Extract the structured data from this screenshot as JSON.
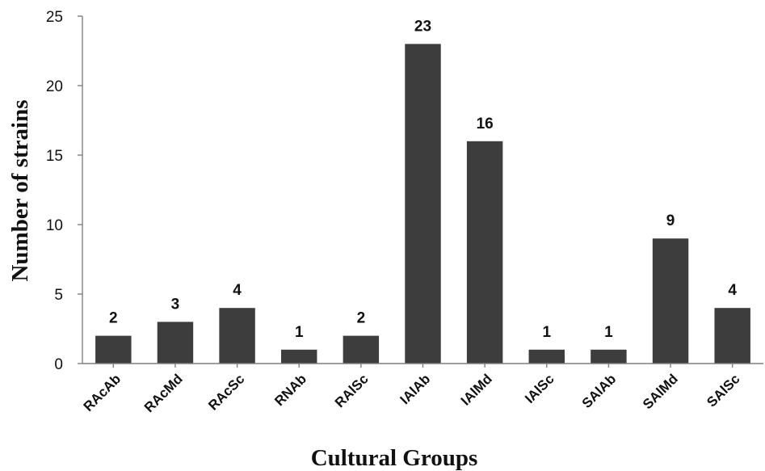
{
  "chart_data": {
    "type": "bar",
    "title": "",
    "xlabel": "Cultural Groups",
    "ylabel": "Number of strains",
    "ylim": [
      0,
      25
    ],
    "yticks": [
      0,
      5,
      10,
      15,
      20,
      25
    ],
    "grid": false,
    "legend": "none",
    "bar_color": "#3d3d3d",
    "categories": [
      "RAcAb",
      "RAcMd",
      "RAcSc",
      "RNAb",
      "RAlSc",
      "IAlAb",
      "IAlMd",
      "IAlSc",
      "SAlAb",
      "SAlMd",
      "SAlSc"
    ],
    "values": [
      2,
      3,
      4,
      1,
      2,
      23,
      16,
      1,
      1,
      9,
      4
    ],
    "data_labels": [
      "2",
      "3",
      "4",
      "1",
      "2",
      "23",
      "16",
      "1",
      "1",
      "9",
      "4"
    ]
  }
}
